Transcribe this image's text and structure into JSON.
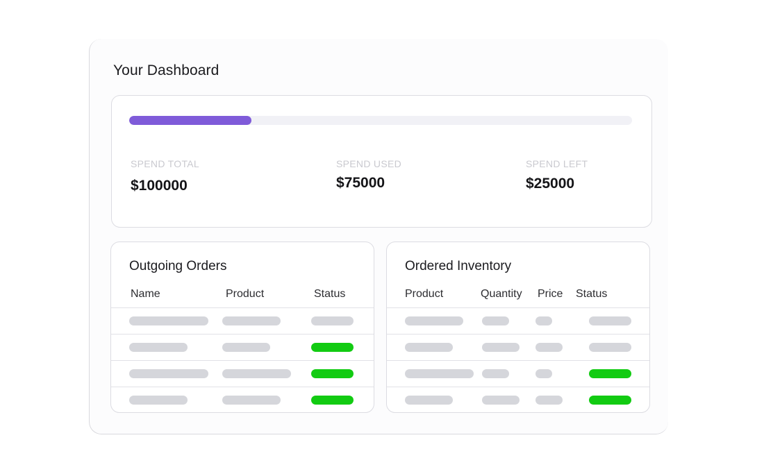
{
  "dashboard": {
    "title": "Your Dashboard"
  },
  "spend": {
    "progress_fraction": 0.243,
    "progress_color": "#7f5bd9",
    "stats": [
      {
        "label": "SPEND TOTAL",
        "value": "$100000"
      },
      {
        "label": "SPEND USED",
        "value": "$75000"
      },
      {
        "label": "SPEND LEFT",
        "value": "$25000"
      }
    ]
  },
  "outgoing_orders": {
    "title": "Outgoing Orders",
    "columns": [
      "Name",
      "Product",
      "Status"
    ],
    "rows": [
      {
        "status": "pending"
      },
      {
        "status": "complete"
      },
      {
        "status": "complete"
      },
      {
        "status": "complete"
      }
    ]
  },
  "ordered_inventory": {
    "title": "Ordered Inventory",
    "columns": [
      "Product",
      "Quantity",
      "Price",
      "Status"
    ],
    "rows": [
      {
        "status": "pending"
      },
      {
        "status": "pending"
      },
      {
        "status": "complete"
      },
      {
        "status": "complete"
      }
    ]
  },
  "colors": {
    "placeholder": "#d5d6db",
    "status_complete": "#12cb12"
  }
}
